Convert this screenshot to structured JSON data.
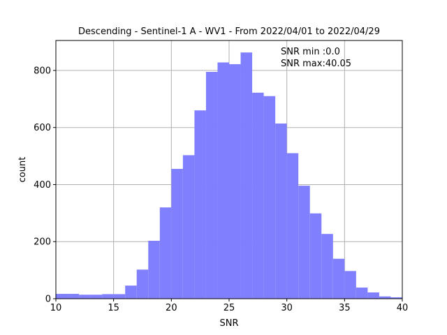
{
  "chart_data": {
    "type": "bar",
    "title": "Descending - Sentinel-1 A - WV1 - From 2022/04/01 to 2022/04/29",
    "xlabel": "SNR",
    "ylabel": "count",
    "xlim": [
      10,
      40
    ],
    "ylim": [
      0,
      905
    ],
    "xticks": [
      10,
      15,
      20,
      25,
      30,
      35,
      40
    ],
    "yticks": [
      0,
      200,
      400,
      600,
      800
    ],
    "grid": true,
    "bar_color": "#8080ff",
    "annotations": [
      "SNR min :0.0",
      "SNR max:40.05"
    ],
    "bin_edges": [
      10,
      11,
      12,
      13,
      14,
      15,
      16,
      17,
      18,
      19,
      20,
      21,
      22,
      23,
      24,
      25,
      26,
      27,
      28,
      29,
      30,
      31,
      32,
      33,
      34,
      35,
      36,
      37,
      38,
      39,
      40
    ],
    "values": [
      17,
      17,
      14,
      14,
      16,
      16,
      46,
      102,
      203,
      320,
      455,
      503,
      660,
      795,
      828,
      822,
      863,
      722,
      710,
      614,
      510,
      396,
      299,
      227,
      140,
      97,
      39,
      22,
      8,
      5
    ]
  }
}
